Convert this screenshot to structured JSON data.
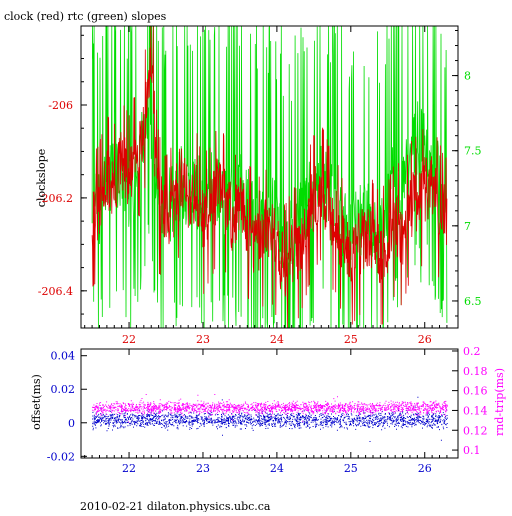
{
  "title": "clock (red) rtc (green) slopes",
  "footer": "2010-02-21  dilaton.physics.ubc.ca",
  "colors": {
    "clock": "#dd0000",
    "rtc": "#00dd00",
    "offset": "#0000cc",
    "rndtrip": "#ff00ff",
    "axis": "#000000"
  },
  "chart_data": [
    {
      "type": "line",
      "title": "clock (red) rtc (green) slopes",
      "ylabel": "clockslope",
      "xlim": [
        21.35,
        26.45
      ],
      "ylim": [
        -206.48,
        -205.83
      ],
      "y2lim": [
        6.32,
        8.33
      ],
      "x_ticks": [
        22,
        23,
        24,
        25,
        26
      ],
      "y_ticks": [
        -206.4,
        -206.2,
        -206
      ],
      "y2_ticks": [
        6.5,
        7,
        7.5,
        8
      ],
      "x_tick_labels": [
        "22",
        "23",
        "24",
        "25",
        "26"
      ],
      "y_tick_labels": [
        "-206.4",
        "-206.2",
        "-206"
      ],
      "y2_tick_labels": [
        "6.5",
        "7",
        "7.5",
        "8"
      ],
      "series": [
        {
          "color": "#dd0000",
          "axis": "left",
          "points": [
            [
              21.5,
              -206.24
            ],
            [
              21.6,
              -206.22
            ],
            [
              21.7,
              -206.15
            ],
            [
              21.8,
              -206.18
            ],
            [
              21.9,
              -206.12
            ],
            [
              22.0,
              -206.16
            ],
            [
              22.1,
              -206.1
            ],
            [
              22.2,
              -206.05
            ],
            [
              22.25,
              -205.97
            ],
            [
              22.3,
              -205.9
            ],
            [
              22.35,
              -206.0
            ],
            [
              22.4,
              -206.2
            ],
            [
              22.5,
              -206.25
            ],
            [
              22.6,
              -206.22
            ],
            [
              22.7,
              -206.15
            ],
            [
              22.8,
              -206.2
            ],
            [
              22.9,
              -206.18
            ],
            [
              23.0,
              -206.25
            ],
            [
              23.1,
              -206.22
            ],
            [
              23.2,
              -206.18
            ],
            [
              23.3,
              -206.2
            ],
            [
              23.4,
              -206.25
            ],
            [
              23.5,
              -206.22
            ],
            [
              23.6,
              -206.25
            ],
            [
              23.7,
              -206.3
            ],
            [
              23.8,
              -206.28
            ],
            [
              23.9,
              -206.26
            ],
            [
              24.0,
              -206.3
            ],
            [
              24.1,
              -206.35
            ],
            [
              24.2,
              -206.32
            ],
            [
              24.3,
              -206.3
            ],
            [
              24.4,
              -206.25
            ],
            [
              24.5,
              -206.2
            ],
            [
              24.6,
              -206.18
            ],
            [
              24.7,
              -206.22
            ],
            [
              24.8,
              -206.25
            ],
            [
              24.9,
              -206.3
            ],
            [
              25.0,
              -206.32
            ],
            [
              25.1,
              -206.3
            ],
            [
              25.2,
              -206.28
            ],
            [
              25.3,
              -206.3
            ],
            [
              25.4,
              -206.32
            ],
            [
              25.5,
              -206.3
            ],
            [
              25.6,
              -206.25
            ],
            [
              25.7,
              -206.28
            ],
            [
              25.8,
              -206.22
            ],
            [
              25.9,
              -206.2
            ],
            [
              26.0,
              -206.18
            ],
            [
              26.1,
              -206.17
            ],
            [
              26.2,
              -206.22
            ],
            [
              26.3,
              -206.25
            ]
          ]
        },
        {
          "color": "#00dd00",
          "axis": "right",
          "points": [
            [
              21.5,
              7.2
            ],
            [
              21.6,
              7.1
            ],
            [
              21.7,
              7.4
            ],
            [
              21.8,
              7.3
            ],
            [
              21.9,
              7.35
            ],
            [
              22.0,
              7.2
            ],
            [
              22.1,
              7.3
            ],
            [
              22.2,
              7.6
            ],
            [
              22.25,
              7.8
            ],
            [
              22.3,
              7.7
            ],
            [
              22.35,
              7.4
            ],
            [
              22.4,
              7.0
            ],
            [
              22.5,
              7.1
            ],
            [
              22.6,
              7.2
            ],
            [
              22.7,
              7.3
            ],
            [
              22.8,
              7.2
            ],
            [
              22.9,
              7.25
            ],
            [
              23.0,
              7.2
            ],
            [
              23.1,
              7.25
            ],
            [
              23.2,
              7.3
            ],
            [
              23.3,
              7.2
            ],
            [
              23.4,
              7.15
            ],
            [
              23.5,
              7.25
            ],
            [
              23.6,
              7.2
            ],
            [
              23.7,
              7.1
            ],
            [
              23.8,
              7.05
            ],
            [
              23.9,
              7.1
            ],
            [
              24.0,
              7.05
            ],
            [
              24.1,
              6.9
            ],
            [
              24.2,
              6.95
            ],
            [
              24.3,
              7.1
            ],
            [
              24.4,
              7.15
            ],
            [
              24.5,
              7.25
            ],
            [
              24.6,
              7.3
            ],
            [
              24.7,
              7.25
            ],
            [
              24.8,
              7.1
            ],
            [
              24.9,
              7.0
            ],
            [
              25.0,
              7.0
            ],
            [
              25.1,
              7.05
            ],
            [
              25.2,
              7.1
            ],
            [
              25.3,
              7.0
            ],
            [
              25.4,
              6.95
            ],
            [
              25.5,
              7.1
            ],
            [
              25.6,
              7.4
            ],
            [
              25.7,
              7.2
            ],
            [
              25.8,
              7.5
            ],
            [
              25.9,
              7.6
            ],
            [
              26.0,
              7.55
            ],
            [
              26.1,
              7.5
            ],
            [
              26.2,
              7.3
            ],
            [
              26.3,
              7.05
            ]
          ]
        }
      ]
    },
    {
      "type": "scatter",
      "ylabel": "offset(ms)",
      "y2label": "rnd-trip(ms)",
      "xlim": [
        21.35,
        26.45
      ],
      "ylim": [
        -0.021,
        0.044
      ],
      "y2lim": [
        0.092,
        0.202
      ],
      "x_ticks": [
        22,
        23,
        24,
        25,
        26
      ],
      "y_ticks": [
        -0.02,
        0,
        0.02,
        0.04
      ],
      "y2_ticks": [
        0.1,
        0.12,
        0.14,
        0.16,
        0.18,
        0.2
      ],
      "x_tick_labels": [
        "22",
        "23",
        "24",
        "25",
        "26"
      ],
      "y_tick_labels": [
        "-0.02",
        "0",
        "0.02",
        "0.04"
      ],
      "y2_tick_labels": [
        "0.1",
        "0.12",
        "0.14",
        "0.16",
        "0.18",
        "0.2"
      ],
      "series": [
        {
          "color": "#0000cc",
          "axis": "left",
          "x_range": [
            21.5,
            26.3
          ],
          "center": 0.002,
          "spread": 0.007,
          "count": 2000
        },
        {
          "color": "#ff00ff",
          "axis": "right",
          "x_range": [
            21.5,
            26.3
          ],
          "center": 0.143,
          "spread": 0.009,
          "count": 2000
        }
      ]
    }
  ]
}
